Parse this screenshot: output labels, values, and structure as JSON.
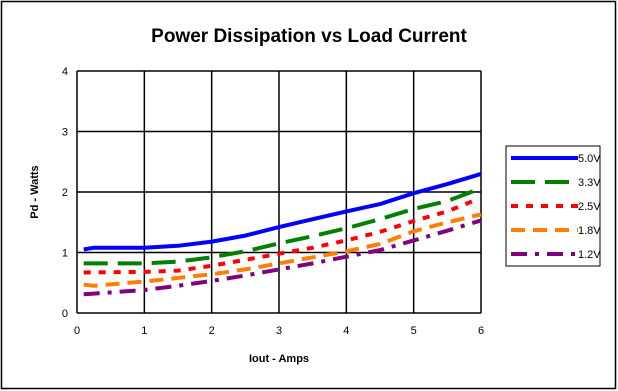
{
  "chart_data": {
    "type": "line",
    "title": "Power Dissipation vs Load Current",
    "xlabel": "Iout - Amps",
    "ylabel": "Pd - Watts",
    "xlim": [
      0,
      6
    ],
    "ylim": [
      0,
      4
    ],
    "x_ticks": [
      "0",
      "1",
      "2",
      "3",
      "4",
      "5",
      "6"
    ],
    "y_ticks": [
      "0",
      "1",
      "2",
      "3",
      "4"
    ],
    "grid": true,
    "legend_position": "right",
    "series": [
      {
        "name": "5.0V",
        "color": "#0000ff",
        "style": "solid",
        "points": [
          [
            0.1,
            1.05
          ],
          [
            0.25,
            1.08
          ],
          [
            1.0,
            1.08
          ],
          [
            1.5,
            1.11
          ],
          [
            2.0,
            1.18
          ],
          [
            2.5,
            1.28
          ],
          [
            3.0,
            1.42
          ],
          [
            3.5,
            1.55
          ],
          [
            4.0,
            1.68
          ],
          [
            4.5,
            1.8
          ],
          [
            5.0,
            1.98
          ],
          [
            5.5,
            2.13
          ],
          [
            6.0,
            2.3
          ]
        ]
      },
      {
        "name": "3.3V",
        "color": "#008000",
        "style": "long-dash",
        "points": [
          [
            0.1,
            0.82
          ],
          [
            1.0,
            0.82
          ],
          [
            1.5,
            0.85
          ],
          [
            2.0,
            0.92
          ],
          [
            2.5,
            1.02
          ],
          [
            3.0,
            1.15
          ],
          [
            3.5,
            1.27
          ],
          [
            4.0,
            1.4
          ],
          [
            4.5,
            1.55
          ],
          [
            5.0,
            1.72
          ],
          [
            5.5,
            1.85
          ],
          [
            5.9,
            2.02
          ]
        ]
      },
      {
        "name": "2.5V",
        "color": "#ff0000",
        "style": "short-dash",
        "points": [
          [
            0.1,
            0.67
          ],
          [
            1.0,
            0.68
          ],
          [
            1.5,
            0.7
          ],
          [
            2.0,
            0.78
          ],
          [
            2.5,
            0.88
          ],
          [
            3.0,
            0.98
          ],
          [
            3.5,
            1.08
          ],
          [
            4.0,
            1.2
          ],
          [
            4.5,
            1.34
          ],
          [
            5.0,
            1.52
          ],
          [
            5.5,
            1.68
          ],
          [
            5.9,
            1.86
          ]
        ]
      },
      {
        "name": "1.8V",
        "color": "#ff8000",
        "style": "dash",
        "points": [
          [
            0.1,
            0.47
          ],
          [
            0.25,
            0.45
          ],
          [
            1.0,
            0.52
          ],
          [
            1.5,
            0.58
          ],
          [
            2.0,
            0.64
          ],
          [
            2.5,
            0.72
          ],
          [
            3.0,
            0.82
          ],
          [
            3.5,
            0.92
          ],
          [
            4.0,
            1.02
          ],
          [
            4.5,
            1.14
          ],
          [
            5.0,
            1.35
          ],
          [
            5.5,
            1.5
          ],
          [
            6.0,
            1.63
          ]
        ]
      },
      {
        "name": "1.2V",
        "color": "#800080",
        "style": "dash-dot",
        "points": [
          [
            0.1,
            0.31
          ],
          [
            0.25,
            0.32
          ],
          [
            1.0,
            0.38
          ],
          [
            1.5,
            0.45
          ],
          [
            2.0,
            0.53
          ],
          [
            2.5,
            0.62
          ],
          [
            3.0,
            0.72
          ],
          [
            3.5,
            0.82
          ],
          [
            4.0,
            0.93
          ],
          [
            4.5,
            1.04
          ],
          [
            5.0,
            1.2
          ],
          [
            5.5,
            1.36
          ],
          [
            6.0,
            1.53
          ]
        ]
      }
    ]
  }
}
